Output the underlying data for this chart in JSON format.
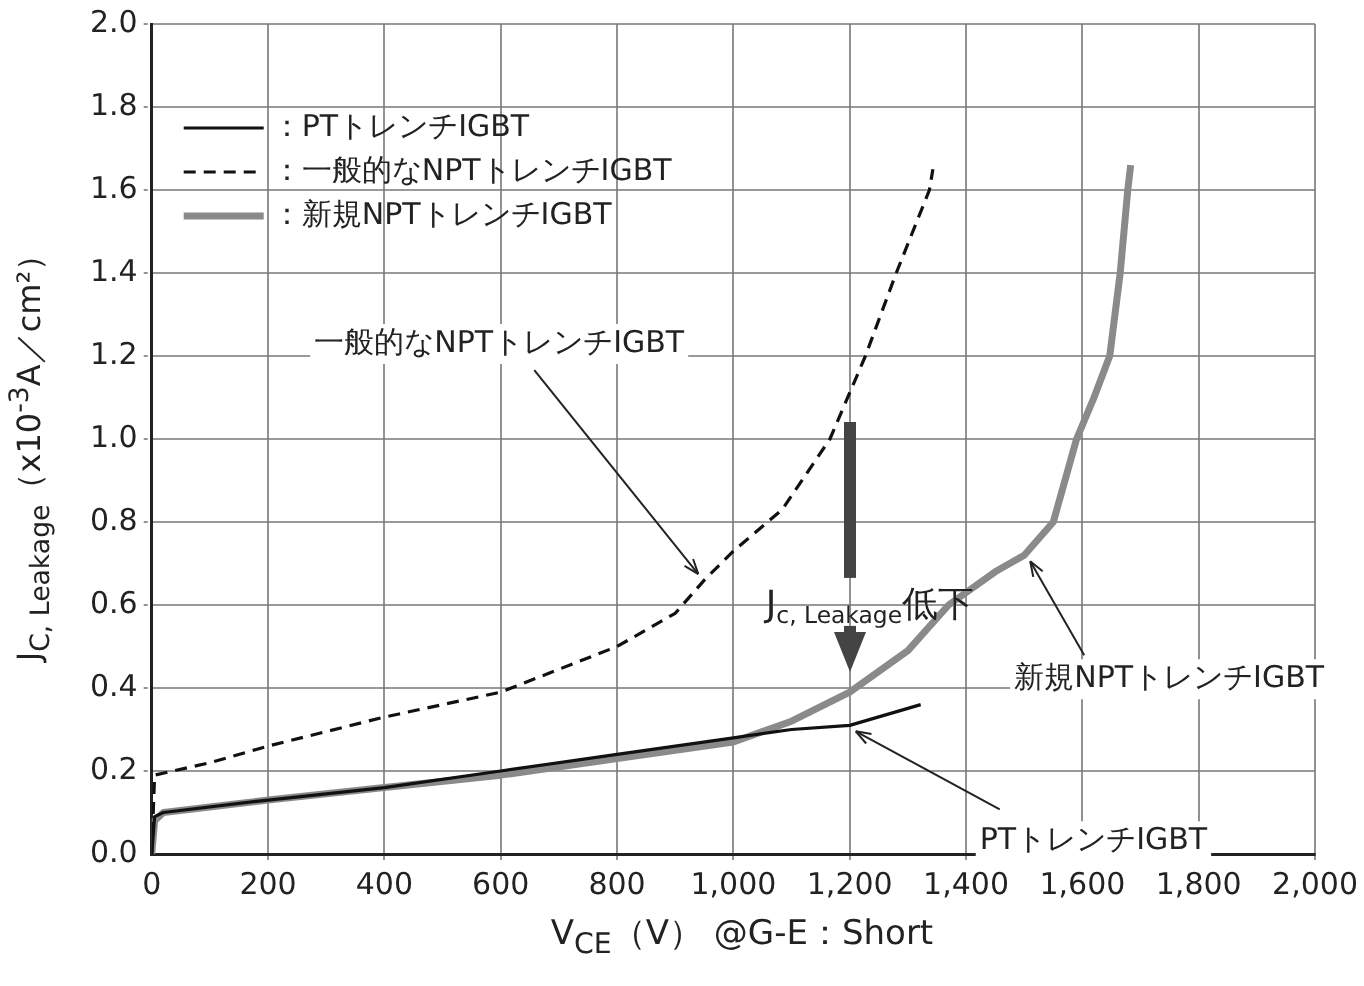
{
  "chart_data": {
    "type": "line",
    "xlabel": "V$_{CE}$（V） @G-E：Short",
    "ylabel": "J$_{C, Leakage}$（x10$^{-3}$A／cm²）",
    "series": [
      {
        "name": "：PTトレンチIGBT",
        "color": "#111111",
        "line_style": "solid",
        "x": [
          0,
          5,
          20,
          200,
          400,
          600,
          800,
          1000,
          1100,
          1200,
          1322
        ],
        "values": [
          0,
          0.09,
          0.1,
          0.13,
          0.16,
          0.2,
          0.24,
          0.28,
          0.3,
          0.31,
          0.36
        ]
      },
      {
        "name": "：一般的なNPTトレンチIGBT",
        "color": "#111111",
        "line_style": "dashed",
        "x": [
          0,
          5,
          100,
          200,
          400,
          600,
          800,
          900,
          950,
          1000,
          1084,
          1166,
          1227,
          1280,
          1337,
          1343
        ],
        "values": [
          0,
          0.19,
          0.22,
          0.26,
          0.33,
          0.39,
          0.5,
          0.58,
          0.66,
          0.73,
          0.83,
          1.0,
          1.2,
          1.4,
          1.6,
          1.65
        ]
      },
      {
        "name": "：新規NPTトレンチIGBT",
        "color": "#8a8a8a",
        "line_style": "solid",
        "x": [
          0,
          5,
          20,
          200,
          400,
          600,
          800,
          1000,
          1100,
          1200,
          1300,
          1370,
          1450,
          1500,
          1550,
          1590,
          1620,
          1647,
          1665,
          1678,
          1683
        ],
        "values": [
          0,
          0.08,
          0.1,
          0.13,
          0.16,
          0.19,
          0.23,
          0.27,
          0.32,
          0.39,
          0.49,
          0.6,
          0.68,
          0.72,
          0.8,
          1.0,
          1.1,
          1.2,
          1.4,
          1.6,
          1.66
        ]
      }
    ],
    "xlim": [
      0,
      2000
    ],
    "xticks": [
      0,
      200,
      400,
      600,
      800,
      {
        "value": 1000,
        "label": "1,000"
      },
      {
        "value": 1200,
        "label": "1,200"
      },
      {
        "value": 1400,
        "label": "1,400"
      },
      {
        "value": 1600,
        "label": "1,600"
      },
      {
        "value": 1800,
        "label": "1,800"
      },
      {
        "value": 2000,
        "label": "2,000"
      }
    ],
    "ylim": [
      0,
      2.0
    ],
    "yticks": [
      {
        "value": 0,
        "label": "0.0"
      },
      {
        "value": 0.2,
        "label": "0.2"
      },
      {
        "value": 0.4,
        "label": "0.4"
      },
      {
        "value": 0.6,
        "label": "0.6"
      },
      {
        "value": 0.8,
        "label": "0.8"
      },
      {
        "value": 1.0,
        "label": "1.0"
      },
      {
        "value": 1.2,
        "label": "1.2"
      },
      {
        "value": 1.4,
        "label": "1.4"
      },
      {
        "value": 1.6,
        "label": "1.6"
      },
      {
        "value": 1.8,
        "label": "1.8"
      },
      {
        "value": 2.0,
        "label": "2.0"
      }
    ],
    "grid": true,
    "legend": "top left",
    "marker": "none",
    "annotations": [
      {
        "text": "一般的なNPTトレンチIGBT",
        "x": 950,
        "y": 0.66
      },
      {
        "text": "新規NPTトレンチIGBT",
        "x": 1500,
        "y": 0.72
      },
      {
        "text": "PTトレンチIGBT",
        "x": 1200,
        "y": 0.31
      },
      {
        "text": "J$_{c, Leakage}$低下",
        "x": 1200,
        "y": 0.38
      }
    ]
  }
}
